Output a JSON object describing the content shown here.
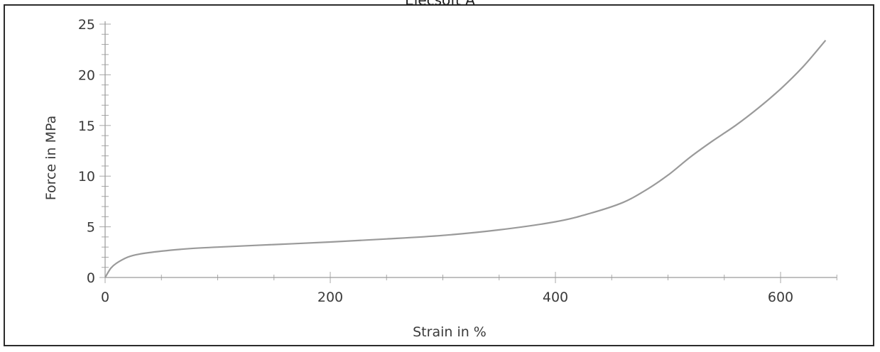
{
  "chart_data": {
    "type": "line",
    "title": "Elecsoft A",
    "xlabel": "Strain in %",
    "ylabel": "Force in MPa",
    "xlim": [
      0,
      650
    ],
    "ylim": [
      0,
      25
    ],
    "xticks": [
      "0",
      "200",
      "400",
      "600"
    ],
    "xtick_values": [
      0,
      200,
      400,
      600
    ],
    "yticks": [
      "0",
      "5",
      "10",
      "15",
      "20",
      "25"
    ],
    "ytick_values": [
      0,
      5,
      10,
      15,
      20,
      25
    ],
    "grid": false,
    "series": [
      {
        "color": "#9a9a9a",
        "x": [
          0,
          5,
          10,
          20,
          30,
          50,
          75,
          100,
          150,
          200,
          250,
          300,
          350,
          400,
          430,
          460,
          480,
          500,
          520,
          540,
          560,
          580,
          600,
          620,
          640
        ],
        "y": [
          0,
          0.9,
          1.4,
          2.0,
          2.3,
          2.6,
          2.85,
          3.0,
          3.25,
          3.5,
          3.8,
          4.15,
          4.7,
          5.5,
          6.3,
          7.4,
          8.6,
          10.1,
          11.9,
          13.5,
          15.0,
          16.7,
          18.6,
          20.8,
          23.4
        ]
      }
    ]
  }
}
